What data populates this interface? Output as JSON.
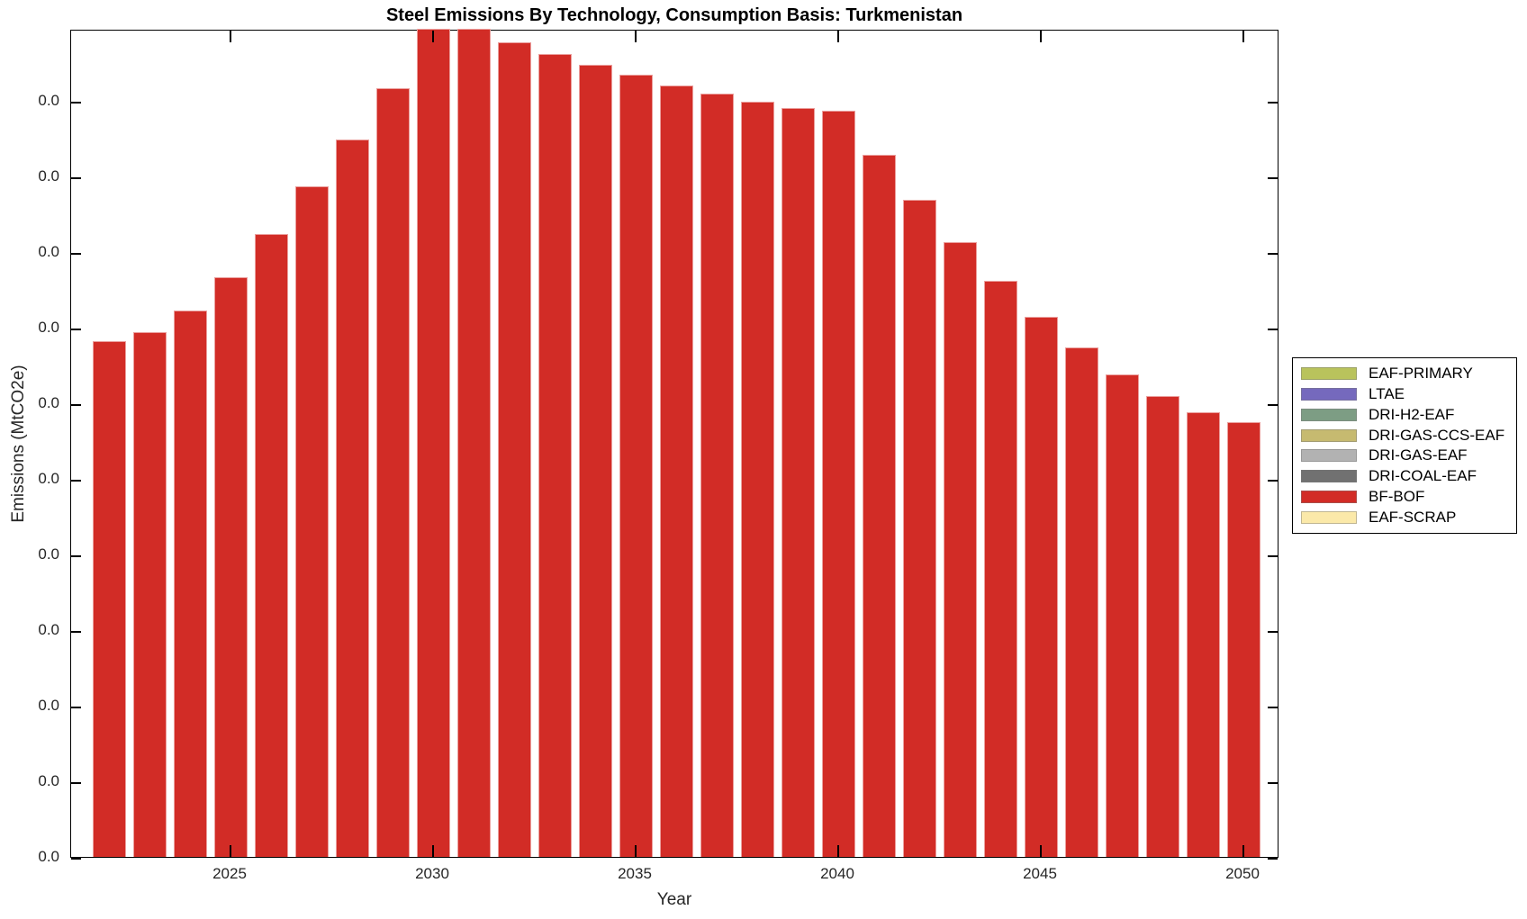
{
  "title": "Steel Emissions By Technology, Consumption Basis: Turkmenistan",
  "x_axis": {
    "label": "Year",
    "tick_years": [
      2025,
      2030,
      2035,
      2040,
      2045,
      2050
    ]
  },
  "y_axis": {
    "label": "Emissions (MtCO2e)",
    "tick_count": 11,
    "tick_label_text": "0.0"
  },
  "legend": {
    "items": [
      {
        "label": "EAF-PRIMARY",
        "color": "#b9c35c"
      },
      {
        "label": "LTAE",
        "color": "#7569bd"
      },
      {
        "label": "DRI-H2-EAF",
        "color": "#7d9d84"
      },
      {
        "label": "DRI-GAS-CCS-EAF",
        "color": "#c6ba70"
      },
      {
        "label": "DRI-GAS-EAF",
        "color": "#b2b2b2"
      },
      {
        "label": "DRI-COAL-EAF",
        "color": "#717171"
      },
      {
        "label": "BF-BOF",
        "color": "#d22c26"
      },
      {
        "label": "EAF-SCRAP",
        "color": "#fbe9a9"
      }
    ]
  },
  "chart_data": {
    "type": "bar",
    "title": "Steel Emissions By Technology, Consumption Basis: Turkmenistan",
    "xlabel": "Year",
    "ylabel": "Emissions (MtCO2e)",
    "xlim": [
      2021.1,
      2050.9
    ],
    "x_tick_labels": [
      "2025",
      "2030",
      "2035",
      "2040",
      "2045",
      "2050"
    ],
    "y_tick_labels": [
      "0.0",
      "0.0",
      "0.0",
      "0.0",
      "0.0",
      "0.0",
      "0.0",
      "0.0",
      "0.0",
      "0.0",
      "0.0"
    ],
    "grid": false,
    "legend_position": "right-outside",
    "unit_note": "All 11 y-axis tick labels read 0.0 (values too small for one-decimal precision); bar heights recorded as fraction of plot height. Bars for 2030 and 2031 reach/clip at the plot top.",
    "categories": [
      2022,
      2023,
      2024,
      2025,
      2026,
      2027,
      2028,
      2029,
      2030,
      2031,
      2032,
      2033,
      2034,
      2035,
      2036,
      2037,
      2038,
      2039,
      2040,
      2041,
      2042,
      2043,
      2044,
      2045,
      2046,
      2047,
      2048,
      2049,
      2050
    ],
    "series": [
      {
        "name": "BF-BOF",
        "color": "#d22c26",
        "values_frac_of_plot_height": [
          0.623,
          0.634,
          0.66,
          0.7,
          0.752,
          0.81,
          0.866,
          0.928,
          1.0,
          1.0,
          0.984,
          0.97,
          0.957,
          0.945,
          0.932,
          0.922,
          0.912,
          0.904,
          0.901,
          0.848,
          0.793,
          0.742,
          0.696,
          0.652,
          0.615,
          0.583,
          0.557,
          0.537,
          0.525
        ]
      }
    ]
  }
}
